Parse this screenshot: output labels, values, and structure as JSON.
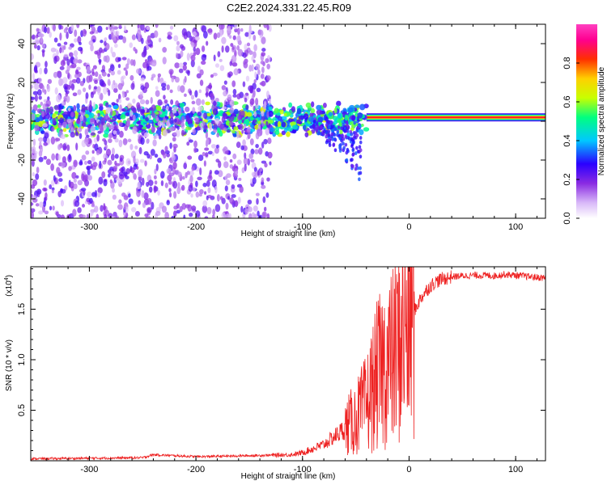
{
  "title": "C2E2.2024.331.22.45.R09",
  "chart_data": [
    {
      "type": "heatmap",
      "name": "spectrogram",
      "xlabel": "Height of straight line (km)",
      "ylabel": "Frequency (Hz)",
      "xlim": [
        -355,
        128
      ],
      "ylim": [
        -50,
        50
      ],
      "x_ticks": [
        -300,
        -200,
        -100,
        0,
        100
      ],
      "y_ticks": [
        -40,
        -20,
        0,
        20,
        40
      ],
      "colorbar": {
        "label": "Normalized spectral amplitude",
        "range": [
          0.0,
          1.0
        ],
        "ticks": [
          0.0,
          0.2,
          0.4,
          0.6,
          0.8
        ],
        "tick_labels": [
          "0.0",
          "0.2",
          "0.4",
          "0.6",
          "0.8"
        ],
        "colormap": [
          "#ffffff",
          "#d8b8f8",
          "#8a2be2",
          "#2a00ff",
          "#00c8ff",
          "#00ff80",
          "#c8ff00",
          "#ffd000",
          "#ff3000",
          "#ff0090",
          "#ff40c0"
        ]
      },
      "features": [
        {
          "kind": "carrier_line",
          "x_range": [
            -40,
            128
          ],
          "frequency": 2,
          "amplitude": 0.85
        },
        {
          "kind": "noisy_band",
          "x_range": [
            -355,
            -40
          ],
          "frequency": 1,
          "amplitude": 0.5
        },
        {
          "kind": "scatter_cloud",
          "x_range": [
            -355,
            -130
          ],
          "frequency_range": [
            -50,
            50
          ],
          "amplitude": 0.15
        },
        {
          "kind": "scatter_tail",
          "x_range": [
            -90,
            -45
          ],
          "frequency_range": [
            -30,
            0
          ],
          "amplitude": 0.2
        }
      ]
    },
    {
      "type": "line",
      "name": "snr",
      "xlabel": "Height of straight line (km)",
      "ylabel": "SNR (10 * v/v)",
      "y_multiplier": "(x10",
      "y_multiplier_exponent": "4",
      "y_multiplier_close": ")",
      "xlim": [
        -355,
        128
      ],
      "ylim": [
        0,
        19200
      ],
      "x_ticks": [
        -300,
        -200,
        -100,
        0,
        100
      ],
      "y_ticks": [
        5000,
        10000,
        15000
      ],
      "y_tick_labels": [
        "0.5",
        "1.0",
        "1.5"
      ],
      "color": "#ee2222",
      "series": [
        {
          "x": [
            -355,
            -300,
            -250,
            -240,
            -200,
            -150,
            -110,
            -100,
            -90,
            -80,
            -70,
            -60,
            -50,
            -40,
            -35,
            -30,
            -25,
            -20,
            -15,
            -10,
            -5,
            0,
            5,
            10,
            15,
            20,
            25,
            30,
            40,
            50,
            60,
            70,
            80,
            90,
            100,
            110,
            120,
            128
          ],
          "y": [
            200,
            250,
            300,
            600,
            400,
            500,
            600,
            800,
            1200,
            1600,
            2400,
            3200,
            4200,
            5600,
            7000,
            8400,
            9200,
            9800,
            10200,
            11600,
            12800,
            13800,
            14800,
            15900,
            16700,
            17300,
            17700,
            17950,
            18200,
            18300,
            18350,
            18350,
            18300,
            18450,
            18350,
            18250,
            18150,
            18100
          ]
        }
      ]
    }
  ]
}
